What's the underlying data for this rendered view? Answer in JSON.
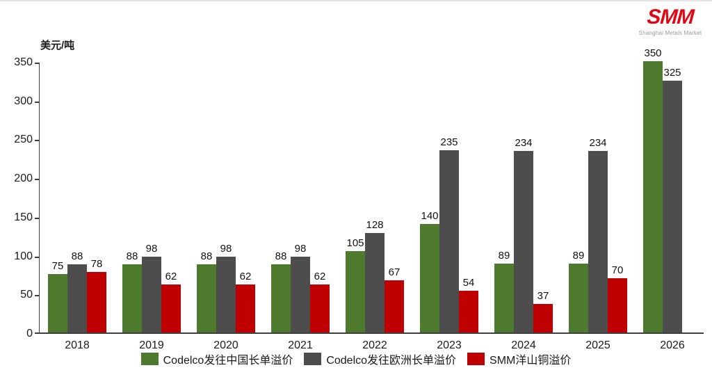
{
  "logo": {
    "text": "SMM",
    "subtext": "Shanghai Metals Market",
    "color": "#e30613"
  },
  "axis": {
    "unit_label": "美元/吨"
  },
  "chart_data": {
    "type": "bar",
    "title": "",
    "categories": [
      "2018",
      "2019",
      "2020",
      "2021",
      "2022",
      "2023",
      "2024",
      "2025",
      "2026"
    ],
    "series": [
      {
        "name": "Codelco发往中国长单溢价",
        "color": "#4e7a2e",
        "values": [
          75,
          88,
          88,
          88,
          105,
          140,
          89,
          89,
          350
        ]
      },
      {
        "name": "Codelco发往欧洲长单溢价",
        "color": "#4d4d4d",
        "values": [
          88,
          98,
          98,
          98,
          128,
          235,
          234,
          234,
          325
        ]
      },
      {
        "name": "SMM洋山铜溢价",
        "color": "#c00000",
        "values": [
          78,
          62,
          62,
          62,
          67,
          54,
          37,
          70,
          null
        ]
      }
    ],
    "xlabel": "",
    "ylabel": "美元/吨",
    "ylim": [
      0,
      350
    ],
    "ytick_step": 50,
    "grid": false,
    "legend_position": "bottom",
    "bar_labels_shown": true
  }
}
